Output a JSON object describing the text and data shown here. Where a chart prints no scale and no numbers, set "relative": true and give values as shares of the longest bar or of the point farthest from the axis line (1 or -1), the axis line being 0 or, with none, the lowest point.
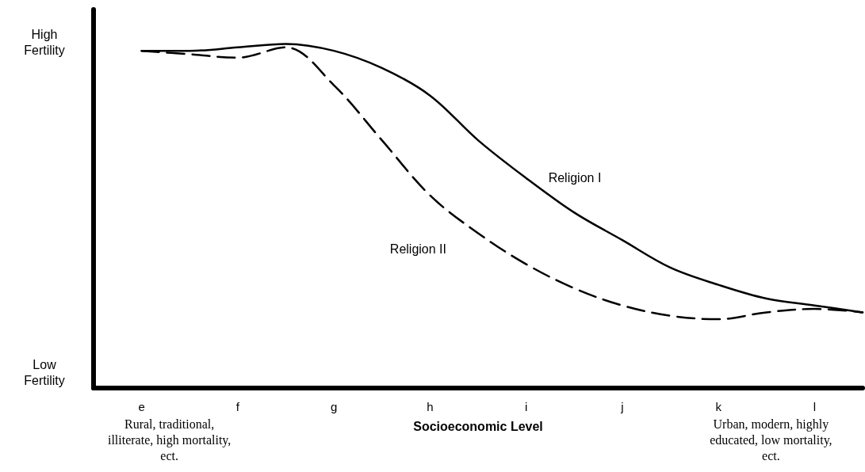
{
  "chart_data": {
    "type": "line",
    "relative": true,
    "xlabel": "Socioeconomic Level",
    "categories": [
      null,
      "e",
      null,
      "f",
      null,
      "g",
      null,
      "h",
      null,
      "i",
      null,
      "j",
      null,
      "k",
      null,
      "l",
      null
    ],
    "series": [
      {
        "name": "Religion I",
        "color": "#000000",
        "line_style": "solid",
        "values": [
          null,
          0.98,
          0.98,
          0.99,
          1.0,
          0.98,
          0.93,
          0.85,
          0.72,
          0.61,
          0.51,
          0.43,
          0.35,
          0.3,
          0.26,
          0.24,
          0.22
        ]
      },
      {
        "name": "Religion II",
        "color": "#000000",
        "line_style": "dashed",
        "values": [
          null,
          0.98,
          0.97,
          0.96,
          0.99,
          0.88,
          0.72,
          0.56,
          0.45,
          0.36,
          0.29,
          0.24,
          0.21,
          0.2,
          0.22,
          0.23,
          0.22
        ]
      }
    ],
    "annotations": [
      "High Fertility",
      "Low Fertility",
      "Rural, traditional, illiterate, high mortality, ect.",
      "Urban, modern, highly educated, low mortality, ect."
    ],
    "legend": false,
    "grid": false,
    "marker": "none"
  }
}
